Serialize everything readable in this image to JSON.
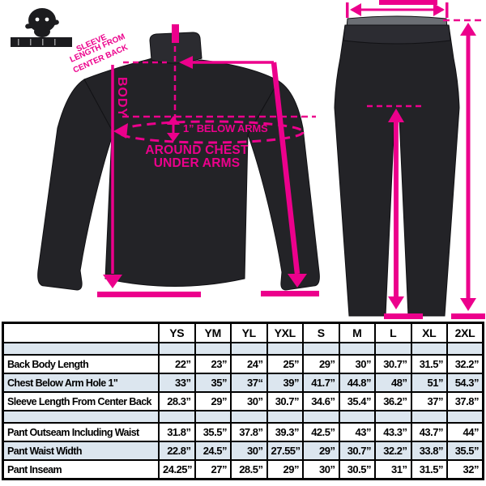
{
  "colors": {
    "accent": "#EC008C",
    "table_alt_row": "#dce6ef",
    "garment": "#232327",
    "table_border": "#000000"
  },
  "brand_logo": {
    "name": "skull-mascot-logo"
  },
  "jacket": {
    "sleeve_note_line1": "SLEEVE",
    "sleeve_note_line2": "LENGTH FROM",
    "sleeve_note_line3": "CENTER BACK",
    "body_label": "BODY",
    "below_arms_label": "1” BELOW ARMS",
    "around_chest_line1": "AROUND CHEST",
    "around_chest_line2": "UNDER ARMS"
  },
  "table": {
    "columns": [
      "YS",
      "YM",
      "YL",
      "YXL",
      "S",
      "M",
      "L",
      "XL",
      "2XL"
    ],
    "rows": [
      {
        "label": "Back Body Length",
        "values": [
          "22”",
          "23”",
          "24”",
          "25”",
          "29”",
          "30”",
          "30.7”",
          "31.5”",
          "32.2”"
        ]
      },
      {
        "label": "Chest Below Arm Hole 1\"",
        "values": [
          "33”",
          "35”",
          "37“",
          "39”",
          "41.7”",
          "44.8”",
          "48”",
          "51”",
          "54.3”"
        ]
      },
      {
        "label": "Sleeve Length From Center Back",
        "values": [
          "28.3”",
          "29”",
          "30”",
          "30.7”",
          "34.6”",
          "35.4”",
          "36.2”",
          "37”",
          "37.8”"
        ]
      },
      {
        "label": "Pant Outseam Including Waist",
        "values": [
          "31.8”",
          "35.5”",
          "37.8”",
          "39.3”",
          "42.5”",
          "43”",
          "43.3”",
          "43.7”",
          "44”"
        ]
      },
      {
        "label": "Pant Waist Width",
        "values": [
          "22.8”",
          "24.5”",
          "30”",
          "27.55”",
          "29”",
          "30.7”",
          "32.2”",
          "33.8”",
          "35.5”"
        ]
      },
      {
        "label": "Pant Inseam",
        "values": [
          "24.25”",
          "27”",
          "28.5”",
          "29”",
          "30”",
          "30.5”",
          "31”",
          "31.5”",
          "32”"
        ]
      }
    ],
    "blue_row_indices": [
      1,
      4
    ]
  }
}
